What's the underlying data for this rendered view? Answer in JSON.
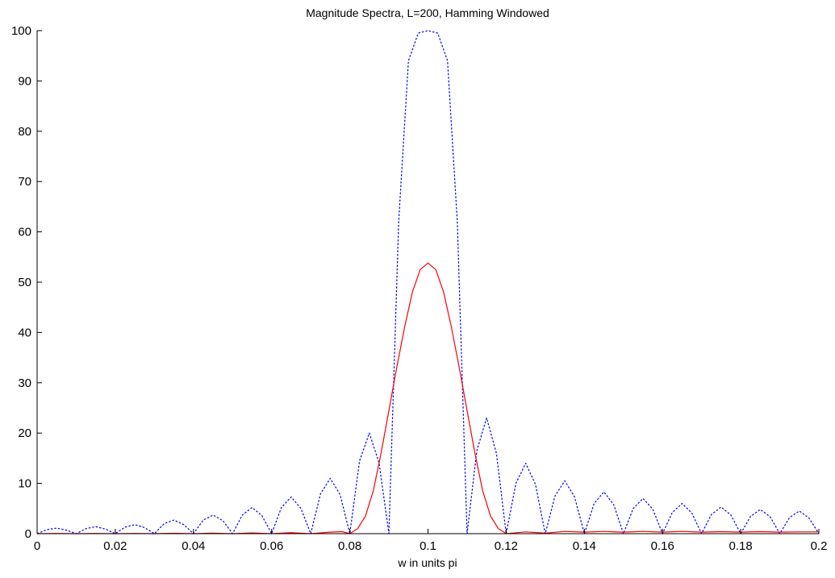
{
  "chart_data": {
    "type": "line",
    "title": "Magnitude Spectra, L=200, Hamming Windowed",
    "xlabel": "w in units pi",
    "ylabel": "",
    "xlim": [
      0,
      0.2
    ],
    "ylim": [
      0,
      100
    ],
    "xticks": [
      "0",
      "0.02",
      "0.04",
      "0.06",
      "0.08",
      "0.1",
      "0.12",
      "0.14",
      "0.16",
      "0.18",
      "0.2"
    ],
    "yticks": [
      "0",
      "10",
      "20",
      "30",
      "40",
      "50",
      "60",
      "70",
      "80",
      "90",
      "100"
    ],
    "grid": false,
    "legend": "none",
    "series": [
      {
        "style": "dotted",
        "color": "#0000ff",
        "x": [
          0,
          0.0025,
          0.005,
          0.0075,
          0.01,
          0.0125,
          0.015,
          0.0175,
          0.02,
          0.0225,
          0.025,
          0.0275,
          0.03,
          0.0325,
          0.035,
          0.0375,
          0.04,
          0.0425,
          0.045,
          0.0475,
          0.05,
          0.0525,
          0.055,
          0.0575,
          0.06,
          0.0625,
          0.065,
          0.0675,
          0.07,
          0.0725,
          0.075,
          0.0775,
          0.08,
          0.0825,
          0.085,
          0.0875,
          0.09,
          0.0925,
          0.095,
          0.0975,
          0.1,
          0.1025,
          0.105,
          0.1075,
          0.11,
          0.1125,
          0.115,
          0.1175,
          0.12,
          0.1225,
          0.125,
          0.1275,
          0.13,
          0.1325,
          0.135,
          0.1375,
          0.14,
          0.1425,
          0.145,
          0.1475,
          0.15,
          0.1525,
          0.155,
          0.1575,
          0.16,
          0.1625,
          0.165,
          0.1675,
          0.17,
          0.1725,
          0.175,
          0.1775,
          0.18,
          0.1825,
          0.185,
          0.1875,
          0.19,
          0.1925,
          0.195,
          0.1975,
          0.2
        ],
        "y": [
          0,
          0.8,
          1.1,
          0.7,
          0,
          1.0,
          1.4,
          0.9,
          0,
          1.3,
          1.8,
          1.2,
          0,
          2.0,
          2.7,
          1.8,
          0,
          2.7,
          3.7,
          2.6,
          0,
          3.7,
          5.2,
          3.6,
          0,
          5.2,
          7.3,
          5.0,
          0,
          7.9,
          11.0,
          7.8,
          0,
          14.5,
          20.0,
          14.0,
          0,
          62,
          94,
          99.5,
          100,
          99.5,
          94,
          62,
          0,
          16.5,
          23.0,
          16.0,
          0,
          10.0,
          14.0,
          9.8,
          0,
          7.5,
          10.5,
          7.3,
          0,
          6.0,
          8.3,
          5.8,
          0,
          5.0,
          7.0,
          4.9,
          0,
          4.2,
          6.0,
          4.1,
          0,
          3.8,
          5.3,
          3.7,
          0,
          3.4,
          4.8,
          3.4,
          0,
          3.2,
          4.5,
          3.1,
          0
        ]
      },
      {
        "style": "solid",
        "color": "#ff0000",
        "x": [
          0,
          0.005,
          0.01,
          0.015,
          0.02,
          0.025,
          0.03,
          0.035,
          0.04,
          0.045,
          0.05,
          0.055,
          0.06,
          0.065,
          0.07,
          0.075,
          0.078,
          0.08,
          0.082,
          0.084,
          0.086,
          0.088,
          0.09,
          0.092,
          0.094,
          0.096,
          0.098,
          0.1,
          0.102,
          0.104,
          0.106,
          0.108,
          0.11,
          0.112,
          0.114,
          0.116,
          0.118,
          0.12,
          0.125,
          0.13,
          0.135,
          0.14,
          0.145,
          0.15,
          0.155,
          0.16,
          0.165,
          0.17,
          0.175,
          0.18,
          0.185,
          0.19,
          0.195,
          0.2
        ],
        "y": [
          0,
          0.05,
          0,
          0.05,
          0,
          0.05,
          0,
          0.08,
          0,
          0.1,
          0,
          0.15,
          0,
          0.2,
          0,
          0.3,
          0.4,
          0,
          1.0,
          3.5,
          8.5,
          16,
          24.5,
          33,
          41,
          48,
          52.5,
          53.8,
          52.5,
          48,
          41,
          33,
          24.5,
          16,
          8.5,
          3.5,
          1.0,
          0,
          0.35,
          0.1,
          0.45,
          0.3,
          0.45,
          0.3,
          0.45,
          0.3,
          0.45,
          0.3,
          0.4,
          0.3,
          0.4,
          0.3,
          0.35,
          0.35
        ]
      }
    ]
  }
}
